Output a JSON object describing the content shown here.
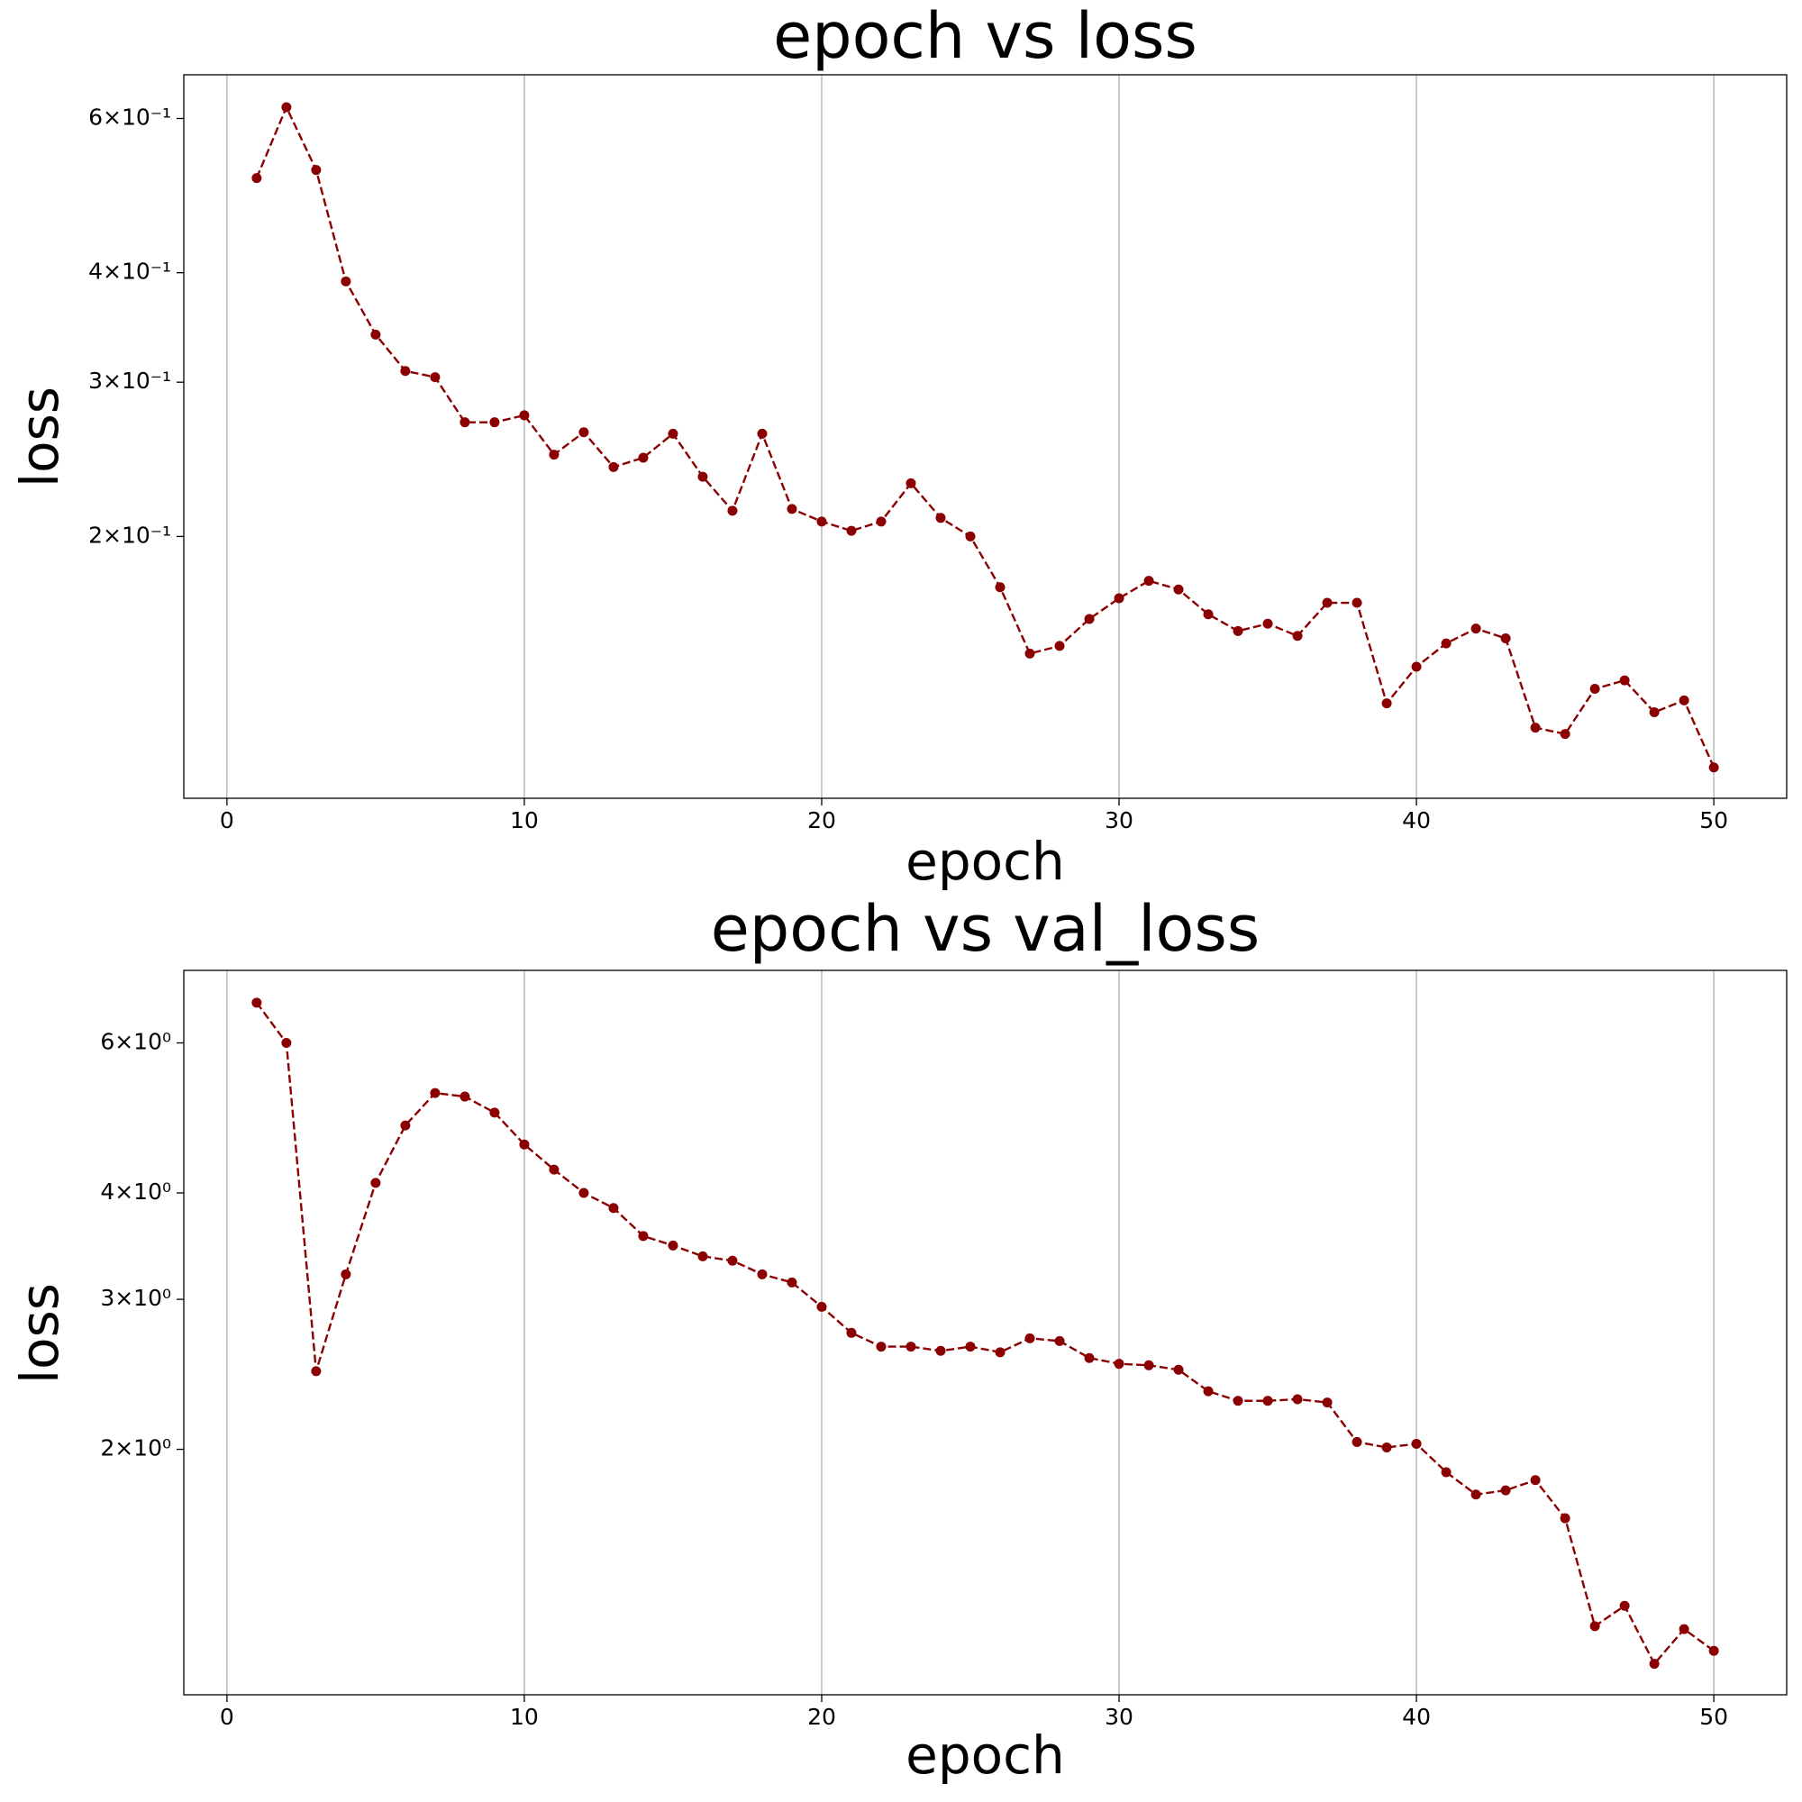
{
  "chart_data": [
    {
      "type": "line",
      "title": "epoch vs loss",
      "xlabel": "epoch",
      "ylabel": "loss",
      "x": [
        1,
        2,
        3,
        4,
        5,
        6,
        7,
        8,
        9,
        10,
        11,
        12,
        13,
        14,
        15,
        16,
        17,
        18,
        19,
        20,
        21,
        22,
        23,
        24,
        25,
        26,
        27,
        28,
        29,
        30,
        31,
        32,
        33,
        34,
        35,
        36,
        37,
        38,
        39,
        40,
        41,
        42,
        43,
        44,
        45,
        46,
        47,
        48,
        49,
        50
      ],
      "values": [
        0.513,
        0.618,
        0.524,
        0.391,
        0.34,
        0.309,
        0.304,
        0.27,
        0.27,
        0.275,
        0.248,
        0.263,
        0.24,
        0.246,
        0.262,
        0.234,
        0.214,
        0.262,
        0.215,
        0.208,
        0.203,
        0.208,
        0.23,
        0.21,
        0.2,
        0.175,
        0.147,
        0.15,
        0.161,
        0.17,
        0.178,
        0.174,
        0.163,
        0.156,
        0.159,
        0.154,
        0.168,
        0.168,
        0.129,
        0.142,
        0.151,
        0.157,
        0.153,
        0.121,
        0.119,
        0.134,
        0.137,
        0.126,
        0.13,
        0.109
      ],
      "color": "#8b0000",
      "line_style": "dashed",
      "marker": "circle",
      "xlim": [
        -1.45,
        52.45
      ],
      "xticks": [
        0,
        10,
        20,
        30,
        40,
        50
      ],
      "yscale": "log",
      "ylim": [
        0.1005,
        0.673
      ],
      "yticks": [
        {
          "value": 0.2,
          "label": "2×10⁻¹"
        },
        {
          "value": 0.3,
          "label": "3×10⁻¹"
        },
        {
          "value": 0.4,
          "label": "4×10⁻¹"
        },
        {
          "value": 0.6,
          "label": "6×10⁻¹"
        }
      ],
      "grid": "x"
    },
    {
      "type": "line",
      "title": "epoch vs val_loss",
      "xlabel": "epoch",
      "ylabel": "loss",
      "x": [
        1,
        2,
        3,
        4,
        5,
        6,
        7,
        8,
        9,
        10,
        11,
        12,
        13,
        14,
        15,
        16,
        17,
        18,
        19,
        20,
        21,
        22,
        23,
        24,
        25,
        26,
        27,
        28,
        29,
        30,
        31,
        32,
        33,
        34,
        35,
        36,
        37,
        38,
        39,
        40,
        41,
        42,
        43,
        44,
        45,
        46,
        47,
        48,
        49,
        50
      ],
      "values": [
        6.69,
        6.0,
        2.47,
        3.21,
        4.11,
        4.8,
        5.24,
        5.19,
        4.97,
        4.56,
        4.26,
        4.0,
        3.84,
        3.56,
        3.47,
        3.37,
        3.33,
        3.21,
        3.14,
        2.94,
        2.74,
        2.64,
        2.64,
        2.61,
        2.64,
        2.6,
        2.7,
        2.68,
        2.56,
        2.52,
        2.51,
        2.48,
        2.34,
        2.28,
        2.28,
        2.29,
        2.27,
        2.04,
        2.01,
        2.03,
        1.88,
        1.77,
        1.79,
        1.84,
        1.66,
        1.24,
        1.31,
        1.12,
        1.23,
        1.16
      ],
      "color": "#8b0000",
      "line_style": "dashed",
      "marker": "circle",
      "xlim": [
        -1.45,
        52.45
      ],
      "xticks": [
        0,
        10,
        20,
        30,
        40,
        50
      ],
      "yscale": "log",
      "ylim": [
        1.03,
        7.3
      ],
      "yticks": [
        {
          "value": 2,
          "label": "2×10⁰"
        },
        {
          "value": 3,
          "label": "3×10⁰"
        },
        {
          "value": 4,
          "label": "4×10⁰"
        },
        {
          "value": 6,
          "label": "6×10⁰"
        }
      ],
      "grid": "x"
    }
  ]
}
